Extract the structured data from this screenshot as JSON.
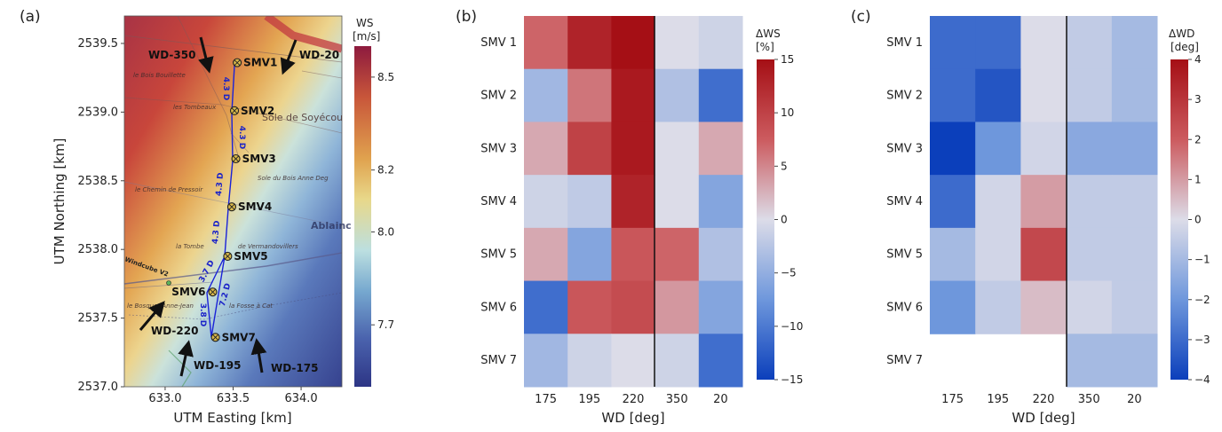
{
  "panels": {
    "a": {
      "label": "(a)",
      "xlabel": "UTM Easting [km]",
      "ylabel": "UTM Northing [km]",
      "xticks": [
        "633.0",
        "633.5",
        "634.0"
      ],
      "yticks": [
        "2537.0",
        "2537.5",
        "2538.0",
        "2538.5",
        "2539.0",
        "2539.5"
      ],
      "colorbar": {
        "title_line1": "WS",
        "title_line2": "[m/s]",
        "ticks": [
          "8.5",
          "8.2",
          "8.0",
          "7.7"
        ]
      },
      "wd_labels": {
        "wd350": "WD-350",
        "wd20": "WD-20",
        "wd220": "WD-220",
        "wd195": "WD-195",
        "wd175": "WD-175"
      },
      "turbines": [
        "SMV1",
        "SMV2",
        "SMV3",
        "SMV4",
        "SMV5",
        "SMV6",
        "SMV7"
      ],
      "spacings": {
        "s12": "4.3 D",
        "s23": "4.3 D",
        "s34": "4.3 D",
        "s45": "4.3 D",
        "s56": "3.7 D",
        "s67": "3.8 D",
        "s57": "7.2 D"
      },
      "map_labels": {
        "bois_bouillette": "le Bois Bouillette",
        "tombeaux": "les Tombeaux",
        "soyecourt": "Sole de Soyécou",
        "chemin_pressoir": "le Chemin de Pressoir",
        "bois_anne": "Sole du Bois Anne Deg",
        "ablain": "Ablainc",
        "tombe": "la Tombe",
        "vermandovillers": "de Vermandovillers",
        "windcube": "Windcube V2",
        "bosquet": "le Bosquet Anne-Jean",
        "fosse": "la Fosse à Cat"
      }
    },
    "b": {
      "label": "(b)",
      "xlabel": "WD [deg]",
      "colorbar": {
        "title_line1": "ΔWS",
        "title_line2": "[%]",
        "ticks": [
          "15",
          "10",
          "5",
          "0",
          "−5",
          "−10",
          "−15"
        ]
      }
    },
    "c": {
      "label": "(c)",
      "xlabel": "WD [deg]",
      "colorbar": {
        "title_line1": "ΔWD",
        "title_line2": "[deg]",
        "ticks": [
          "4",
          "3",
          "2",
          "1",
          "0",
          "−1",
          "−2",
          "−3",
          "−4"
        ]
      }
    }
  },
  "chart_data": [
    {
      "type": "scatter",
      "panel": "a",
      "xlabel": "UTM Easting [km]",
      "ylabel": "UTM Northing [km]",
      "xlim": [
        632.7,
        634.3
      ],
      "ylim": [
        2537.0,
        2539.7
      ],
      "colorbar_range": [
        7.5,
        8.6
      ],
      "points": [
        {
          "name": "SMV1",
          "x": 633.53,
          "y": 2539.36
        },
        {
          "name": "SMV2",
          "x": 633.51,
          "y": 2539.01
        },
        {
          "name": "SMV3",
          "x": 633.52,
          "y": 2538.66
        },
        {
          "name": "SMV4",
          "x": 633.49,
          "y": 2538.31
        },
        {
          "name": "SMV5",
          "x": 633.46,
          "y": 2537.95
        },
        {
          "name": "SMV6",
          "x": 633.35,
          "y": 2537.69
        },
        {
          "name": "SMV7",
          "x": 633.37,
          "y": 2537.36
        }
      ]
    },
    {
      "type": "heatmap",
      "panel": "b",
      "xlabel": "WD [deg]",
      "x": [
        "175",
        "195",
        "220",
        "350",
        "20"
      ],
      "y": [
        "SMV 1",
        "SMV 2",
        "SMV 3",
        "SMV 4",
        "SMV 5",
        "SMV 6",
        "SMV 7"
      ],
      "zlim": [
        -15,
        15
      ],
      "colorbar_title": "ΔWS [%]",
      "z": [
        [
          7,
          13,
          15,
          0,
          -1
        ],
        [
          -4,
          6,
          14,
          -3,
          -11
        ],
        [
          3,
          10,
          14,
          0,
          3
        ],
        [
          -1,
          -2,
          13,
          0,
          -6
        ],
        [
          3,
          -6,
          8,
          7,
          -3
        ],
        [
          -11,
          8,
          9,
          4,
          -6
        ],
        [
          -4,
          -1,
          0,
          -1,
          -11
        ]
      ]
    },
    {
      "type": "heatmap",
      "panel": "c",
      "xlabel": "WD [deg]",
      "x": [
        "175",
        "195",
        "220",
        "350",
        "20"
      ],
      "y": [
        "SMV 1",
        "SMV 2",
        "SMV 3",
        "SMV 4",
        "SMV 5",
        "SMV 6",
        "SMV 7"
      ],
      "zlim": [
        -4,
        4
      ],
      "colorbar_title": "ΔWD [deg]",
      "z": [
        [
          -3,
          -3,
          0,
          -0.5,
          -1
        ],
        [
          -3,
          -3.5,
          0,
          -0.5,
          -1
        ],
        [
          -4,
          -2,
          -0.2,
          -1.5,
          -1.5
        ],
        [
          -3,
          -0.2,
          1,
          -0.5,
          -0.5
        ],
        [
          -1,
          -0.2,
          2.5,
          -0.5,
          -0.5
        ],
        [
          -2,
          -0.5,
          0.5,
          -0.2,
          -0.5
        ],
        [
          null,
          null,
          null,
          -1,
          -1
        ]
      ]
    }
  ]
}
